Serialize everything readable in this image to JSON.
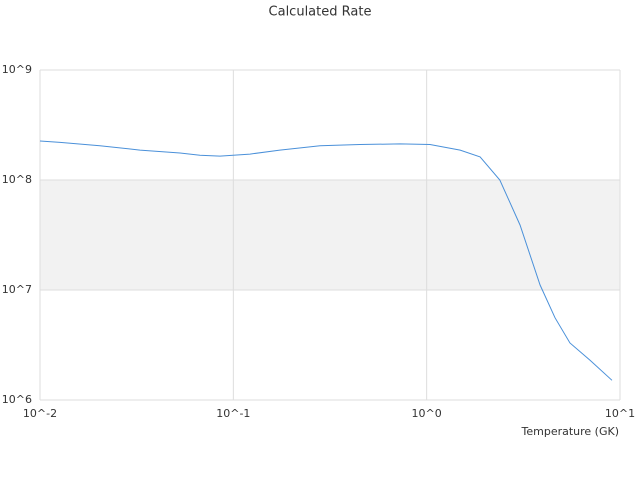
{
  "chart_data": {
    "type": "line",
    "title": "Calculated Rate",
    "x_label": "Temperature (GK)",
    "x": [
      0.01,
      0.0127,
      0.0204,
      0.0329,
      0.053,
      0.0672,
      0.0853,
      0.122,
      0.174,
      0.281,
      0.452,
      0.728,
      1.04,
      1.49,
      1.89,
      2.39,
      3.04,
      3.86,
      4.61,
      5.51,
      7.0,
      9.09
    ],
    "series": [
      {
        "color": "#4a90d9",
        "values": [
          226000000,
          220000000,
          205000000,
          187000000,
          176000000,
          168000000,
          165000000,
          172000000,
          187000000,
          205000000,
          210000000,
          213000000,
          210000000,
          187000000,
          162000000,
          100000000,
          39000000,
          11100000,
          5600000,
          3300000,
          2300000,
          1510000
        ]
      }
    ],
    "xscale": "log",
    "yscale": "log",
    "xlim": [
      0.01,
      10
    ],
    "ylim": [
      1000000,
      1000000000
    ],
    "xticks": [
      {
        "value": 0.01,
        "label": "10^-2"
      },
      {
        "value": 0.1,
        "label": "10^-1"
      },
      {
        "value": 1,
        "label": "10^0"
      },
      {
        "value": 10,
        "label": "10^1"
      }
    ],
    "yticks": [
      {
        "value": 1000000,
        "label": "10^6"
      },
      {
        "value": 10000000,
        "label": "10^7"
      },
      {
        "value": 100000000,
        "label": "10^8"
      },
      {
        "value": 1000000000,
        "label": "10^9"
      }
    ],
    "grid": true
  }
}
